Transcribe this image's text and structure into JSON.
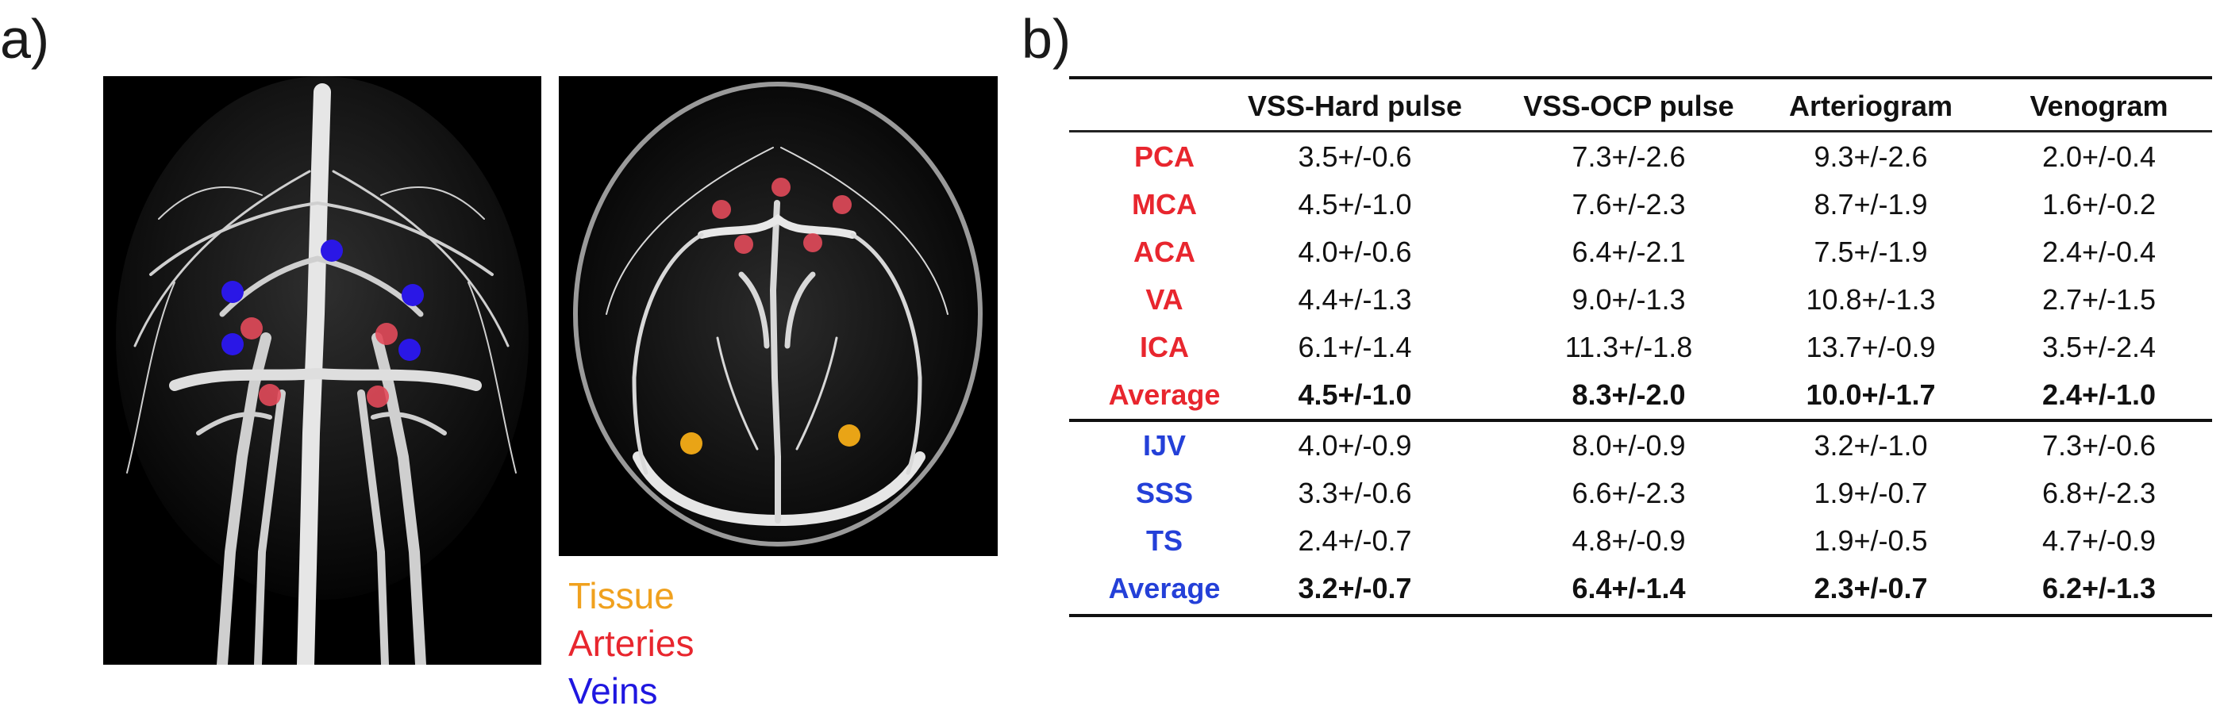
{
  "panels": {
    "a_label": "a)",
    "b_label": "b)"
  },
  "legend": {
    "tissue": {
      "label": "Tissue",
      "color": "#f0a11e"
    },
    "arteries": {
      "label": "Arteries",
      "color": "#e8262e"
    },
    "veins": {
      "label": "Veins",
      "color": "#1f17e0"
    }
  },
  "table": {
    "headers": [
      "",
      "VSS-Hard pulse",
      "VSS-OCP pulse",
      "Arteriogram",
      "Venogram"
    ],
    "artery_rows": [
      {
        "name": "PCA",
        "values": [
          "3.5+/-0.6",
          "7.3+/-2.6",
          "9.3+/-2.6",
          "2.0+/-0.4"
        ]
      },
      {
        "name": "MCA",
        "values": [
          "4.5+/-1.0",
          "7.6+/-2.3",
          "8.7+/-1.9",
          "1.6+/-0.2"
        ]
      },
      {
        "name": "ACA",
        "values": [
          "4.0+/-0.6",
          "6.4+/-2.1",
          "7.5+/-1.9",
          "2.4+/-0.4"
        ]
      },
      {
        "name": "VA",
        "values": [
          "4.4+/-1.3",
          "9.0+/-1.3",
          "10.8+/-1.3",
          "2.7+/-1.5"
        ]
      },
      {
        "name": "ICA",
        "values": [
          "6.1+/-1.4",
          "11.3+/-1.8",
          "13.7+/-0.9",
          "3.5+/-2.4"
        ]
      },
      {
        "name": "Average",
        "values": [
          "4.5+/-1.0",
          "8.3+/-2.0",
          "10.0+/-1.7",
          "2.4+/-1.0"
        ]
      }
    ],
    "vein_rows": [
      {
        "name": "IJV",
        "values": [
          "4.0+/-0.9",
          "8.0+/-0.9",
          "3.2+/-1.0",
          "7.3+/-0.6"
        ]
      },
      {
        "name": "SSS",
        "values": [
          "3.3+/-0.6",
          "6.6+/-2.3",
          "1.9+/-0.7",
          "6.8+/-2.3"
        ]
      },
      {
        "name": "TS",
        "values": [
          "2.4+/-0.7",
          "4.8+/-0.9",
          "1.9+/-0.5",
          "4.7+/-0.9"
        ]
      },
      {
        "name": "Average",
        "values": [
          "3.2+/-0.7",
          "6.4+/-1.4",
          "2.3+/-0.7",
          "6.2+/-1.3"
        ]
      }
    ]
  }
}
